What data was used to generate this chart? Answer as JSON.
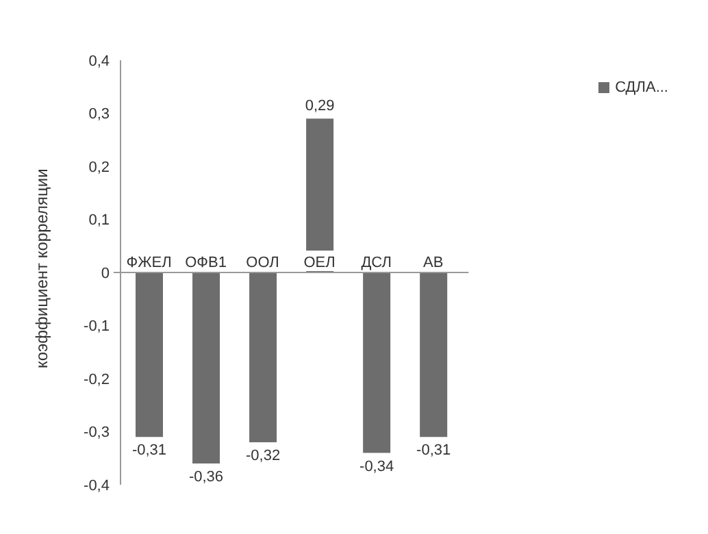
{
  "chart_data": {
    "type": "bar",
    "ylabel": "коэффициент корреляции",
    "categories": [
      "ФЖЕЛ",
      "ОФВ1",
      "ООЛ",
      "ОЕЛ",
      "ДСЛ",
      "АВ"
    ],
    "series": [
      {
        "name": "СДЛА...",
        "color": "#6d6d6d",
        "values": [
          -0.31,
          -0.36,
          -0.32,
          0.29,
          -0.34,
          -0.31
        ],
        "value_labels": [
          "-0,31",
          "-0,36",
          "-0,32",
          "0,29",
          "-0,34",
          "-0,31"
        ]
      }
    ],
    "ylim": [
      -0.4,
      0.4
    ],
    "yticks": [
      {
        "value": 0.4,
        "label": "0,4"
      },
      {
        "value": 0.3,
        "label": "0,3"
      },
      {
        "value": 0.2,
        "label": "0,2"
      },
      {
        "value": 0.1,
        "label": "0,1"
      },
      0,
      {
        "value": -0.1,
        "label": "-0,1"
      },
      {
        "value": -0.2,
        "label": "-0,2"
      },
      {
        "value": -0.3,
        "label": "-0,3"
      },
      {
        "value": -0.4,
        "label": "-0,4"
      }
    ],
    "grid": false,
    "legend": "top right"
  }
}
